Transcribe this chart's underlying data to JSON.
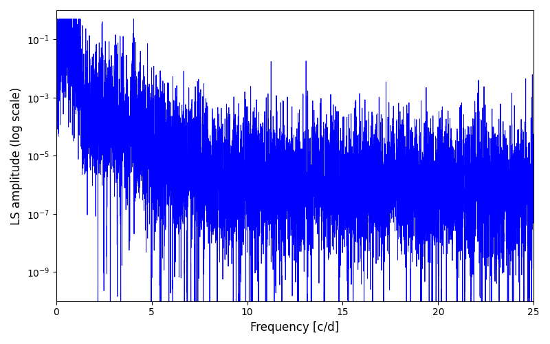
{
  "title": "",
  "xlabel": "Frequency [c/d]",
  "ylabel": "LS amplitude (log scale)",
  "line_color": "#0000ff",
  "line_width": 0.7,
  "xlim": [
    0,
    25
  ],
  "yticks": [
    1e-09,
    1e-07,
    1e-05,
    0.001,
    0.1
  ],
  "xticks": [
    0,
    5,
    10,
    15,
    20,
    25
  ],
  "seed": 12345,
  "n_points": 8000,
  "figsize": [
    8.0,
    5.0
  ],
  "dpi": 100
}
